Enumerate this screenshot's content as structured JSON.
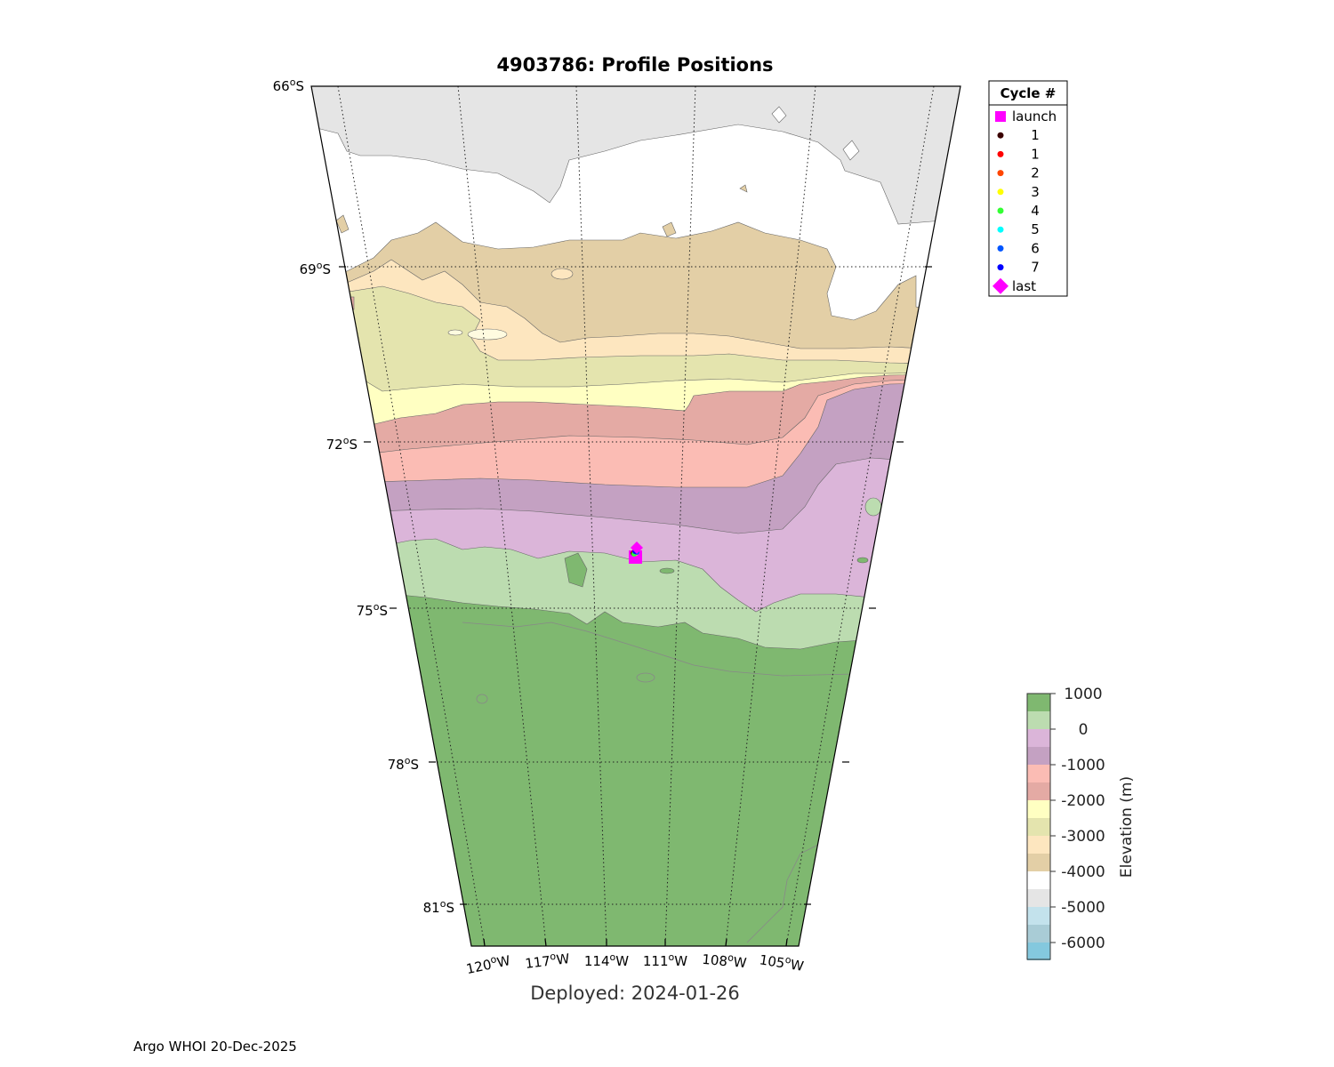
{
  "map": {
    "title": "4903786: Profile Positions",
    "lat_labels": [
      "66°S",
      "69°S",
      "72°S",
      "75°S",
      "78°S",
      "81°S"
    ],
    "lon_labels": [
      "120°W",
      "117°W",
      "114°W",
      "111°W",
      "108°W",
      "105°W"
    ],
    "deployed_label": "Deployed: 2024-01-26",
    "credit": "Argo WHOI 20-Dec-2025"
  },
  "legend": {
    "header": "Cycle #",
    "entries": [
      {
        "label": "launch",
        "marker": "square",
        "color": "#ff00ff"
      },
      {
        "label": "1",
        "marker": "dot",
        "color": "#3a0000"
      },
      {
        "label": "1",
        "marker": "dot",
        "color": "#ff0000"
      },
      {
        "label": "2",
        "marker": "dot",
        "color": "#ff4500"
      },
      {
        "label": "3",
        "marker": "dot",
        "color": "#ffff00"
      },
      {
        "label": "4",
        "marker": "dot",
        "color": "#33ff33"
      },
      {
        "label": "5",
        "marker": "dot",
        "color": "#00ffff"
      },
      {
        "label": "6",
        "marker": "dot",
        "color": "#0055ff"
      },
      {
        "label": "7",
        "marker": "dot",
        "color": "#0000ff"
      },
      {
        "label": "last",
        "marker": "diamond",
        "color": "#ff00ff"
      }
    ]
  },
  "colorbar": {
    "label": "Elevation (m)",
    "ticks": [
      "1000",
      "0",
      "-1000",
      "-2000",
      "-3000",
      "-4000",
      "-5000",
      "-6000"
    ],
    "colors_top_to_bottom": [
      "#7fb870",
      "#bcdcb0",
      "#dbb5d9",
      "#c4a1c2",
      "#fbbcb4",
      "#e4aaa4",
      "#ffffc2",
      "#e4e4ae",
      "#fde6bf",
      "#e3cfa6",
      "#ffffff",
      "#e5e5e5",
      "#c3e2ec",
      "#a9ccd6",
      "#84c8de"
    ]
  }
}
